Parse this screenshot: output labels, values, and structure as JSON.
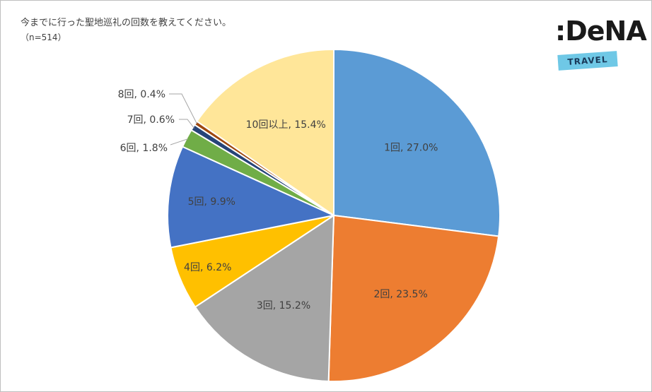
{
  "header": {
    "title": "今までに行った聖地巡礼の回数を教えてください。",
    "subtitle": "（n=514）"
  },
  "logo": {
    "brand": ":DeNA",
    "tag": "TRAVEL"
  },
  "chart_data": {
    "type": "pie",
    "title": "今までに行った聖地巡礼の回数を教えてください。",
    "subtitle": "（n=514）",
    "unit": "%",
    "start_angle_deg": 0,
    "direction": "clockwise",
    "slices": [
      {
        "category": "1回",
        "value": 27.0,
        "color": "#5b9bd5",
        "label": "1回, 27.0%"
      },
      {
        "category": "2回",
        "value": 23.5,
        "color": "#ed7d31",
        "label": "2回, 23.5%"
      },
      {
        "category": "3回",
        "value": 15.2,
        "color": "#a5a5a5",
        "label": "3回, 15.2%"
      },
      {
        "category": "4回",
        "value": 6.2,
        "color": "#ffc000",
        "label": "4回, 6.2%"
      },
      {
        "category": "5回",
        "value": 9.9,
        "color": "#4472c4",
        "label": "5回, 9.9%"
      },
      {
        "category": "6回",
        "value": 1.8,
        "color": "#70ad47",
        "label": "6回, 1.8%"
      },
      {
        "category": "7回",
        "value": 0.6,
        "color": "#264478",
        "label": "7回, 0.6%"
      },
      {
        "category": "8回",
        "value": 0.4,
        "color": "#9e480e",
        "label": "8回, 0.4%"
      },
      {
        "category": "10回以上",
        "value": 15.4,
        "color": "#ffe699",
        "label": "10回以上, 15.4%"
      }
    ]
  }
}
